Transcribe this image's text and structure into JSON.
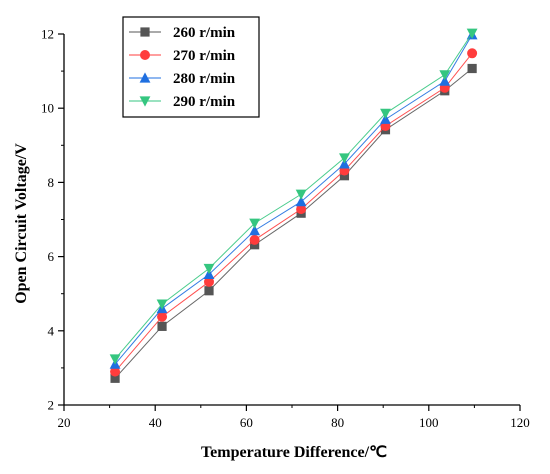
{
  "chart_data": {
    "type": "line",
    "title": "",
    "xlabel": "Temperature Difference/℃",
    "ylabel": "Open Circuit Voltage/V",
    "xlim": [
      20,
      120
    ],
    "ylim": [
      2,
      12
    ],
    "xticks": [
      20,
      40,
      60,
      80,
      100,
      120
    ],
    "yticks": [
      2,
      4,
      6,
      8,
      10,
      12
    ],
    "grid": false,
    "legend_position": "top-left",
    "x": [
      31.2,
      41.5,
      51.8,
      61.8,
      72.0,
      81.5,
      90.5,
      103.5,
      109.5
    ],
    "series": [
      {
        "name": "260 r/min",
        "color": "#555555",
        "marker": "square",
        "values": [
          2.72,
          4.12,
          5.08,
          6.32,
          7.17,
          8.18,
          9.42,
          10.47,
          11.07
        ]
      },
      {
        "name": "270 r/min",
        "color": "#ff3c3c",
        "marker": "circle",
        "values": [
          2.9,
          4.38,
          5.32,
          6.45,
          7.28,
          8.32,
          9.52,
          10.55,
          11.48
        ]
      },
      {
        "name": "280 r/min",
        "color": "#1f6fe0",
        "marker": "triangle-up",
        "values": [
          3.1,
          4.6,
          5.52,
          6.7,
          7.48,
          8.5,
          9.7,
          10.73,
          11.98
        ]
      },
      {
        "name": "290 r/min",
        "color": "#35c680",
        "marker": "triangle-down",
        "values": [
          3.24,
          4.72,
          5.68,
          6.9,
          7.68,
          8.66,
          9.86,
          10.9,
          12.02
        ]
      }
    ]
  }
}
